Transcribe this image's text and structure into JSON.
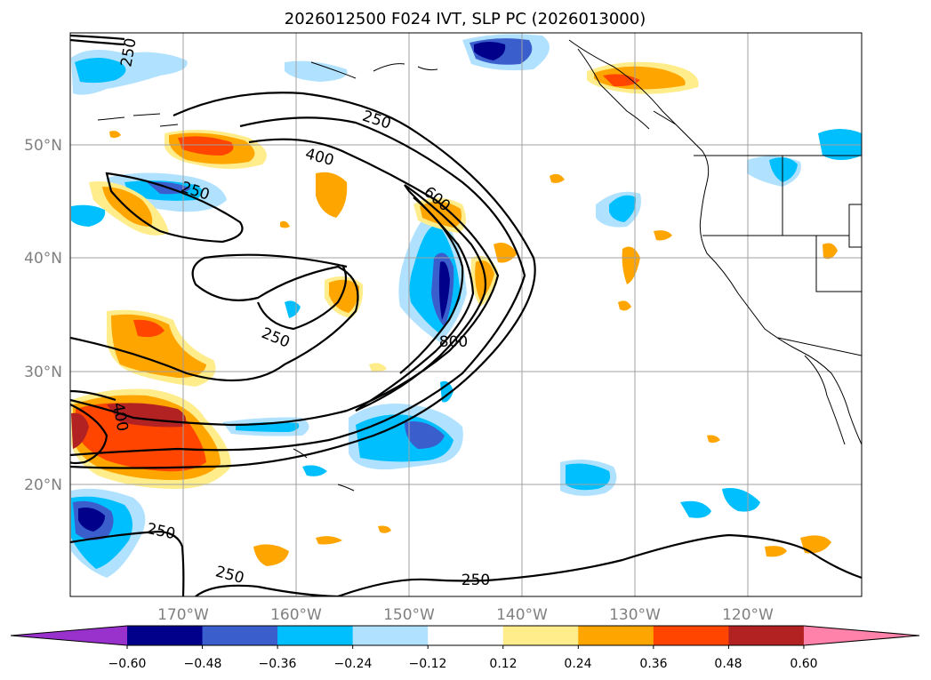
{
  "title": "2026012500 F024 IVT, SLP PC (2026013000)",
  "map": {
    "lat_ticks": [
      "50°N",
      "40°N",
      "30°N",
      "20°N"
    ],
    "lon_ticks": [
      "170°W",
      "160°W",
      "150°W",
      "140°W",
      "130°W",
      "120°W"
    ],
    "contour_labels": [
      "250",
      "250",
      "400",
      "600",
      "250",
      "250",
      "800",
      "400",
      "250",
      "250",
      "250"
    ]
  },
  "colorbar": {
    "ticks": [
      "−0.60",
      "−0.48",
      "−0.36",
      "−0.24",
      "−0.12",
      "0.12",
      "0.24",
      "0.36",
      "0.48",
      "0.60"
    ],
    "colors": [
      "#9932cc",
      "#00008b",
      "#3a5fcd",
      "#00bfff",
      "#b0e2ff",
      "#ffffff",
      "#ffec8b",
      "#ffa500",
      "#ff4500",
      "#b22222",
      "#ff82ab"
    ]
  }
}
